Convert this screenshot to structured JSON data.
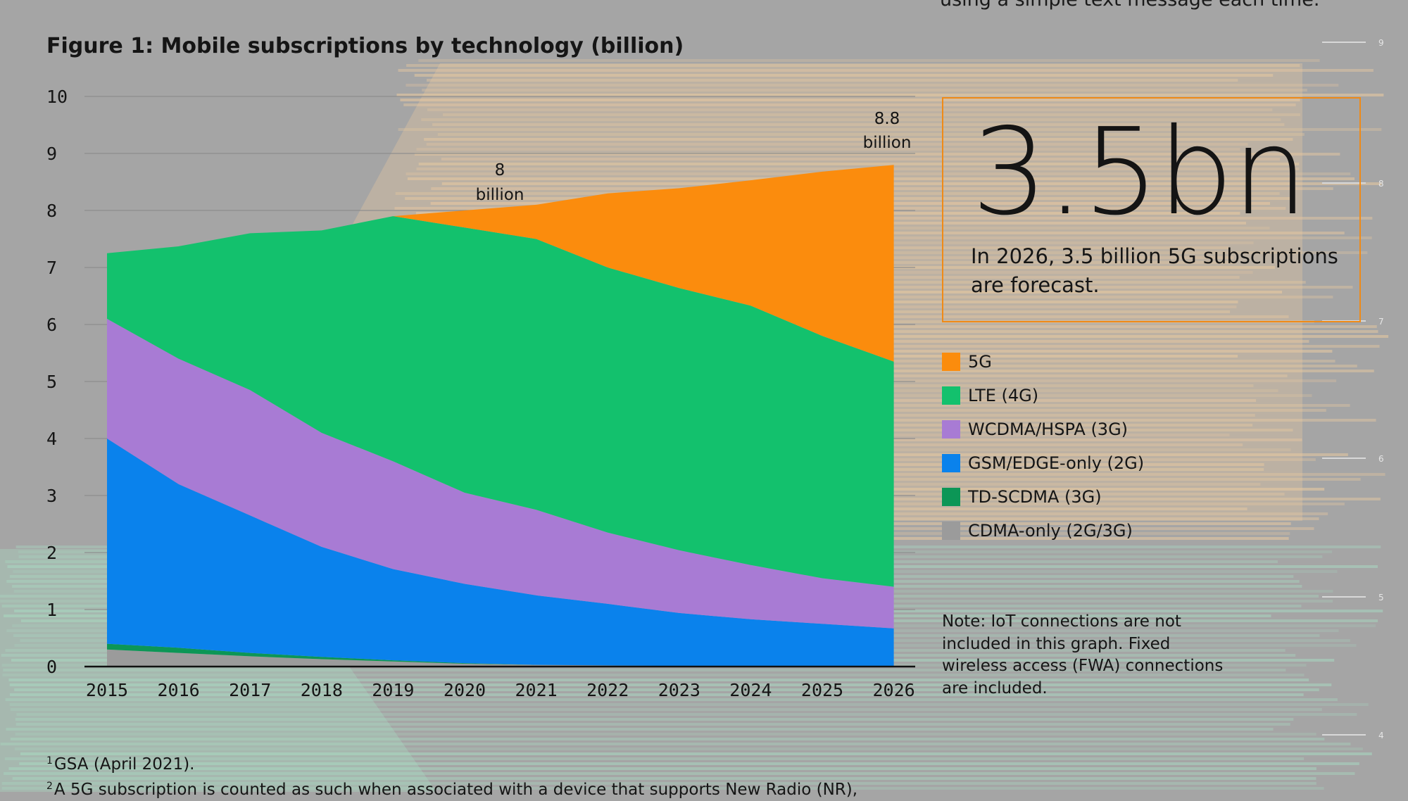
{
  "page": {
    "top_cut_text": "using a simple text message each time.",
    "figure_title": "Figure 1: Mobile subscriptions by technology (billion)",
    "callout": {
      "big_number": "3.5bn",
      "text": "In 2026, 3.5 billion 5G subscriptions are forecast."
    },
    "note": "Note: IoT connections are not included in this graph. Fixed wireless access (FWA) connections are included.",
    "footnotes": [
      {
        "mark": "1",
        "text": "GSA (April 2021)."
      },
      {
        "mark": "2",
        "text": "A 5G subscription is counted as such when associated with a device that supports New Radio (NR),"
      }
    ],
    "background_scale_ticks": [
      "9",
      "8",
      "7",
      "6",
      "5",
      "4"
    ],
    "colors": {
      "background": "#a5a5a5",
      "accent": "#ef8a17",
      "callout_border": "#ef8a17",
      "background_bars_tan": "#e8c9a0",
      "background_bars_mint": "#a8dcc3"
    }
  },
  "chart_data": {
    "type": "area",
    "stacked": true,
    "title": "Figure 1: Mobile subscriptions by technology (billion)",
    "xlabel": "",
    "ylabel": "",
    "categories": [
      "2015",
      "2016",
      "2017",
      "2018",
      "2019",
      "2020",
      "2021",
      "2022",
      "2023",
      "2024",
      "2025",
      "2026"
    ],
    "ylim": [
      0,
      10
    ],
    "yticks": [
      "0",
      "1",
      "2",
      "3",
      "4",
      "5",
      "6",
      "7",
      "8",
      "9",
      "10"
    ],
    "grid": true,
    "legend_position": "right",
    "series": [
      {
        "name": "CDMA-only (2G/3G)",
        "color": "#9b9b9b",
        "values": [
          0.3,
          0.24,
          0.18,
          0.13,
          0.09,
          0.05,
          0.03,
          0.02,
          0.01,
          0.01,
          0.0,
          0.0
        ]
      },
      {
        "name": "TD-SCDMA (3G)",
        "color": "#0c9656",
        "values": [
          0.1,
          0.09,
          0.06,
          0.04,
          0.02,
          0.01,
          0.0,
          0.0,
          0.0,
          0.0,
          0.0,
          0.0
        ]
      },
      {
        "name": "GSM/EDGE-only (2G)",
        "color": "#0a82ec",
        "values": [
          3.6,
          2.87,
          2.41,
          1.93,
          1.6,
          1.39,
          1.22,
          1.08,
          0.93,
          0.82,
          0.75,
          0.67
        ]
      },
      {
        "name": "WCDMA/HSPA (3G)",
        "color": "#a87bd4",
        "values": [
          2.1,
          2.2,
          2.2,
          2.0,
          1.89,
          1.6,
          1.5,
          1.25,
          1.1,
          0.95,
          0.8,
          0.73
        ]
      },
      {
        "name": "LTE (4G)",
        "color": "#13c16d",
        "values": [
          1.15,
          1.97,
          2.75,
          3.55,
          4.3,
          4.65,
          4.75,
          4.65,
          4.6,
          4.55,
          4.25,
          3.95
        ]
      },
      {
        "name": "5G",
        "color": "#fb8c0d",
        "values": [
          0.0,
          0.0,
          0.0,
          0.0,
          0.0,
          0.3,
          0.6,
          1.3,
          1.75,
          2.2,
          2.88,
          3.45
        ]
      }
    ],
    "annotations": [
      {
        "category": "2020",
        "line1": "8",
        "line2": "billion"
      },
      {
        "category": "2026",
        "line1": "8.8",
        "line2": "billion"
      }
    ],
    "legend_order": [
      "5G",
      "LTE (4G)",
      "WCDMA/HSPA (3G)",
      "GSM/EDGE-only (2G)",
      "TD-SCDMA (3G)",
      "CDMA-only (2G/3G)"
    ]
  }
}
